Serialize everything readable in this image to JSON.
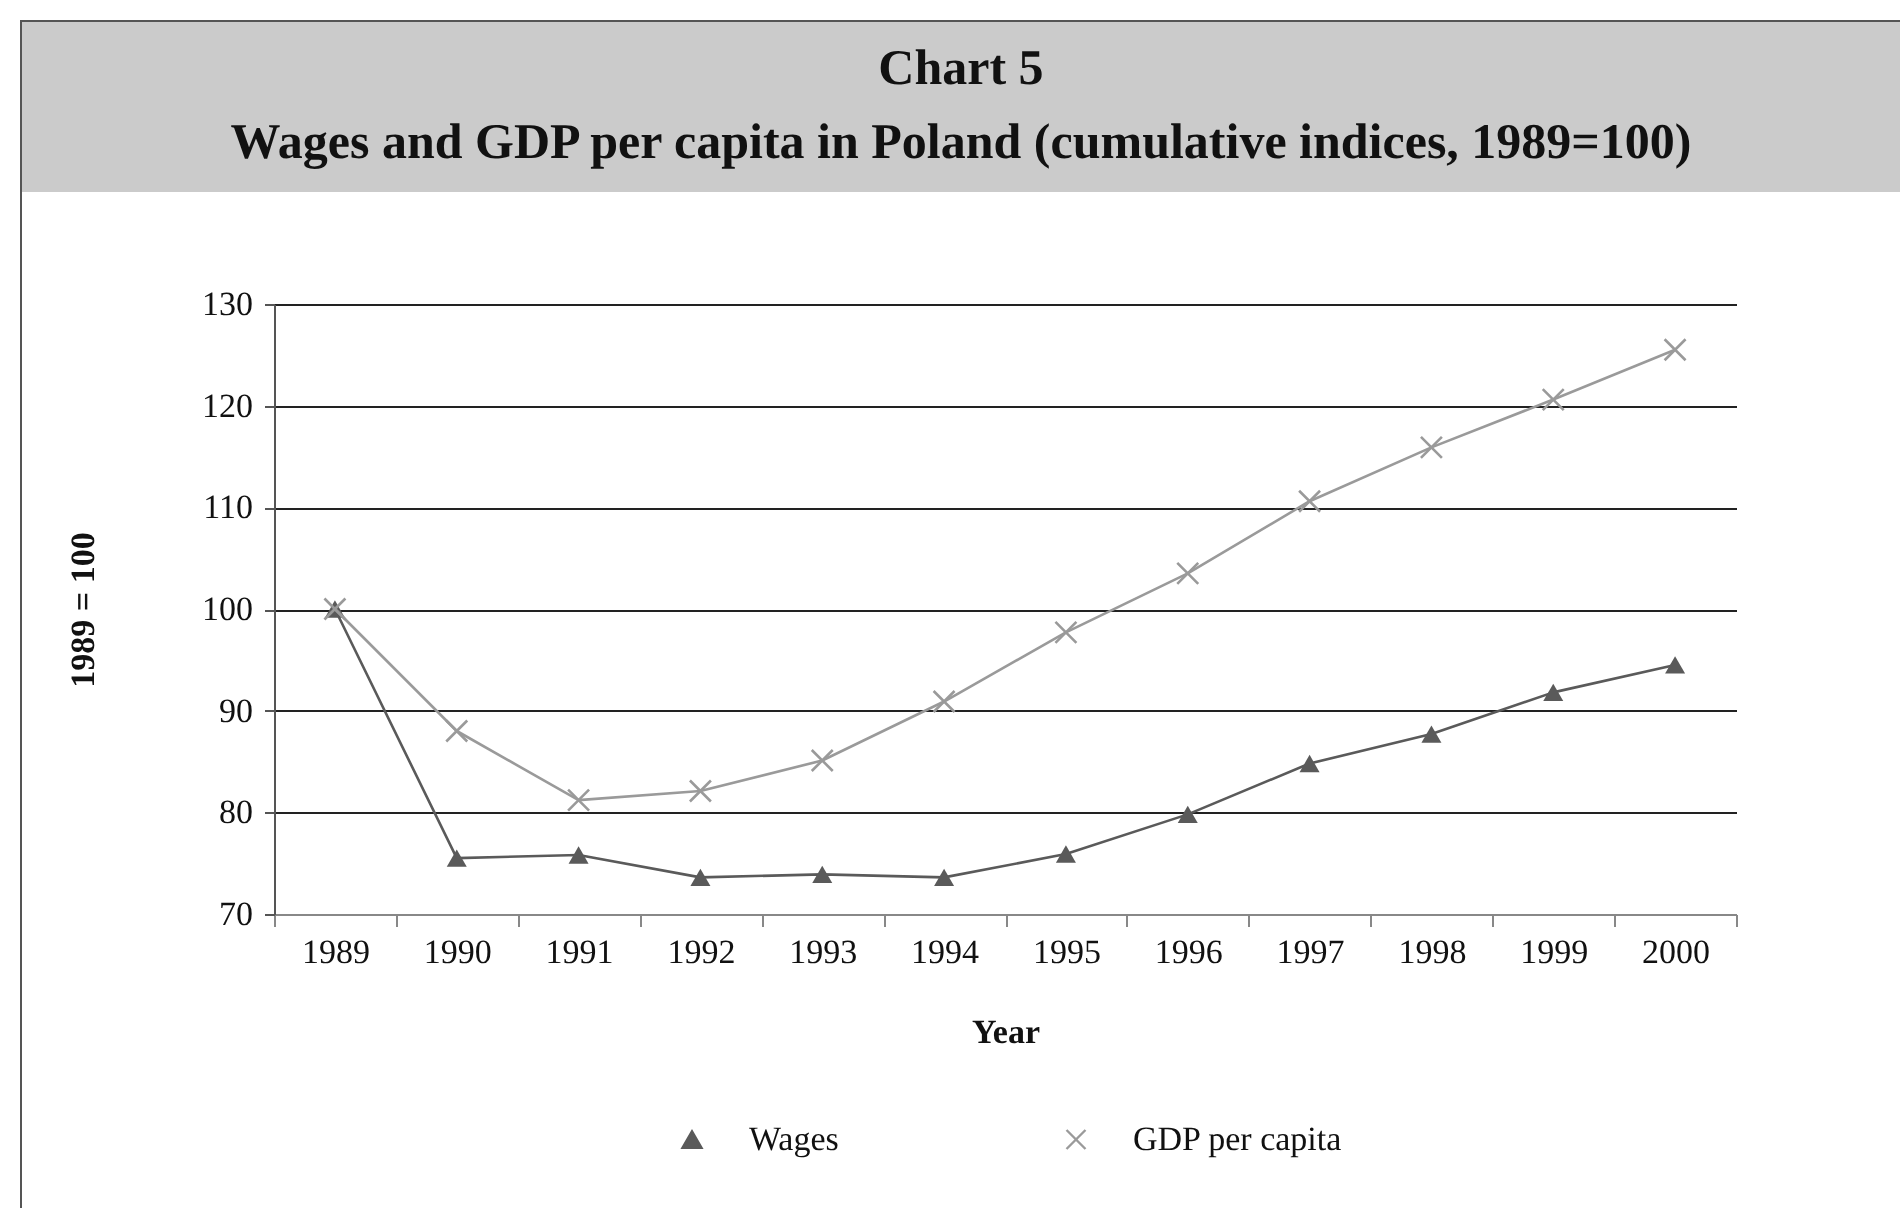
{
  "chart_data": {
    "type": "line",
    "title": "Chart 5",
    "subtitle": "Wages and GDP per capita in Poland (cumulative indices, 1989=100)",
    "xlabel": "Year",
    "ylabel": "1989 = 100",
    "categories": [
      "1989",
      "1990",
      "1991",
      "1992",
      "1993",
      "1994",
      "1995",
      "1996",
      "1997",
      "1998",
      "1999",
      "2000"
    ],
    "series": [
      {
        "name": "Wages",
        "color": "#5a5a5a",
        "marker": "triangle",
        "values": [
          100,
          75.5,
          75.8,
          73.6,
          73.9,
          73.6,
          75.9,
          79.8,
          84.8,
          87.7,
          91.8,
          94.5
        ]
      },
      {
        "name": "GDP per capita",
        "color": "#9a9a9a",
        "marker": "cross",
        "values": [
          100,
          88,
          81.2,
          82.1,
          85.1,
          90.9,
          97.7,
          103.5,
          110.6,
          115.9,
          120.6,
          125.5
        ]
      }
    ],
    "ylim": [
      70,
      130
    ],
    "yticks": [
      70,
      80,
      90,
      100,
      110,
      120,
      130
    ],
    "grid": "y",
    "legend": "bottom"
  }
}
